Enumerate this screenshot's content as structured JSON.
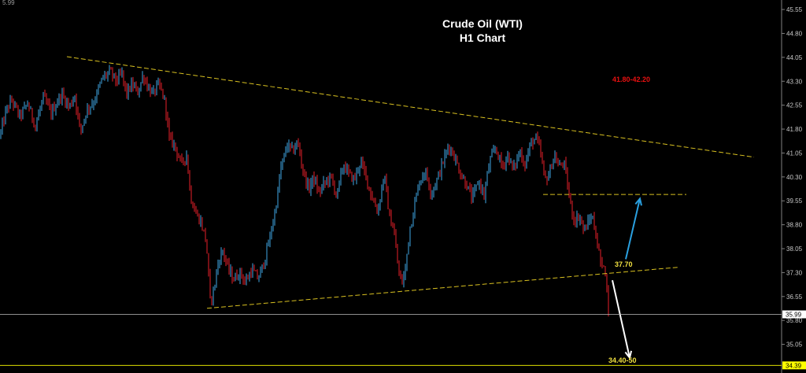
{
  "chart_data": {
    "type": "candlestick",
    "title": "Crude Oil (WTI)",
    "subtitle": "H1 Chart",
    "corner_label": "5.99",
    "y_ticks": [
      45.55,
      44.8,
      44.05,
      43.3,
      42.55,
      41.8,
      41.05,
      40.3,
      39.55,
      38.8,
      38.05,
      37.3,
      36.55,
      35.8,
      35.05
    ],
    "ylim": [
      34.25,
      45.7
    ],
    "current_price": "35.99",
    "lower_marker": "34.39",
    "annotations": {
      "resistance_target": "41.80-42.20",
      "breakout_level": "37.70",
      "downside_target": "34.40-50"
    },
    "colors": {
      "up": "#3fa9e6",
      "down": "#e8202a",
      "trendline": "#d8c020",
      "price_line": "#bfbfbf",
      "up_arrow": "#2aa0e0",
      "down_arrow": "#ffffff",
      "target_text": "#e81010",
      "level_text": "#f0e040",
      "lower_marker_bg": "#ffff00"
    },
    "price_path": [
      [
        0,
        41.6
      ],
      [
        8,
        42.4
      ],
      [
        15,
        42.7
      ],
      [
        25,
        42.2
      ],
      [
        35,
        42.6
      ],
      [
        45,
        41.9
      ],
      [
        55,
        42.8
      ],
      [
        65,
        42.3
      ],
      [
        78,
        42.9
      ],
      [
        88,
        42.5
      ],
      [
        95,
        42.85
      ],
      [
        102,
        41.7
      ],
      [
        110,
        42.4
      ],
      [
        120,
        42.7
      ],
      [
        130,
        43.4
      ],
      [
        140,
        43.6
      ],
      [
        148,
        43.3
      ],
      [
        155,
        43.55
      ],
      [
        160,
        42.9
      ],
      [
        168,
        43.2
      ],
      [
        175,
        42.95
      ],
      [
        182,
        43.5
      ],
      [
        188,
        43.1
      ],
      [
        195,
        42.9
      ],
      [
        200,
        43.2
      ],
      [
        205,
        43.0
      ],
      [
        210,
        42.6
      ],
      [
        215,
        41.5
      ],
      [
        222,
        41.3
      ],
      [
        230,
        40.7
      ],
      [
        237,
        41.0
      ],
      [
        242,
        39.7
      ],
      [
        248,
        39.2
      ],
      [
        255,
        38.9
      ],
      [
        262,
        38.3
      ],
      [
        267,
        36.4
      ],
      [
        272,
        36.8
      ],
      [
        277,
        37.6
      ],
      [
        283,
        38.0
      ],
      [
        290,
        37.4
      ],
      [
        297,
        37.1
      ],
      [
        305,
        37.3
      ],
      [
        312,
        37.0
      ],
      [
        320,
        37.4
      ],
      [
        328,
        37.1
      ],
      [
        335,
        37.6
      ],
      [
        342,
        38.3
      ],
      [
        350,
        39.3
      ],
      [
        357,
        40.6
      ],
      [
        365,
        41.3
      ],
      [
        372,
        41.1
      ],
      [
        378,
        41.4
      ],
      [
        385,
        40.5
      ],
      [
        392,
        39.9
      ],
      [
        398,
        40.3
      ],
      [
        405,
        39.8
      ],
      [
        412,
        40.1
      ],
      [
        420,
        40.3
      ],
      [
        428,
        39.7
      ],
      [
        436,
        40.7
      ],
      [
        443,
        40.4
      ],
      [
        450,
        40.2
      ],
      [
        458,
        40.8
      ],
      [
        465,
        40.3
      ],
      [
        472,
        39.7
      ],
      [
        480,
        39.2
      ],
      [
        488,
        40.4
      ],
      [
        495,
        39.0
      ],
      [
        500,
        38.7
      ],
      [
        505,
        37.6
      ],
      [
        510,
        36.9
      ],
      [
        515,
        37.4
      ],
      [
        520,
        38.6
      ],
      [
        525,
        39.2
      ],
      [
        532,
        40.1
      ],
      [
        540,
        40.5
      ],
      [
        548,
        39.8
      ],
      [
        555,
        40.2
      ],
      [
        562,
        40.7
      ],
      [
        570,
        41.3
      ],
      [
        578,
        40.9
      ],
      [
        585,
        40.4
      ],
      [
        592,
        40.1
      ],
      [
        600,
        39.6
      ],
      [
        608,
        40.2
      ],
      [
        615,
        39.7
      ],
      [
        622,
        40.8
      ],
      [
        630,
        41.2
      ],
      [
        638,
        40.6
      ],
      [
        645,
        41.0
      ],
      [
        652,
        40.5
      ],
      [
        660,
        41.1
      ],
      [
        667,
        40.7
      ],
      [
        675,
        41.4
      ],
      [
        682,
        41.5
      ],
      [
        687,
        41.0
      ],
      [
        692,
        40.2
      ],
      [
        698,
        40.4
      ],
      [
        704,
        41.0
      ],
      [
        710,
        40.6
      ],
      [
        716,
        40.8
      ],
      [
        720,
        40.2
      ],
      [
        725,
        39.4
      ],
      [
        730,
        38.9
      ],
      [
        736,
        39.1
      ],
      [
        742,
        38.6
      ],
      [
        748,
        38.9
      ],
      [
        752,
        39.1
      ],
      [
        757,
        38.5
      ],
      [
        761,
        37.9
      ],
      [
        765,
        37.4
      ],
      [
        768,
        37.7
      ],
      [
        772,
        36.4
      ],
      [
        774,
        36.05
      ]
    ],
    "trendlines": [
      {
        "points": [
          [
            85,
            44.07
          ],
          [
            958,
            40.92
          ]
        ],
        "dash": "6,3"
      },
      {
        "points": [
          [
            263,
            36.18
          ],
          [
            863,
            37.47
          ]
        ],
        "dash": "6,3"
      },
      {
        "points": [
          [
            690,
            39.75
          ],
          [
            872,
            39.75
          ]
        ],
        "dash": "6,3"
      }
    ],
    "arrows": [
      {
        "from": [
          795,
          37.72
        ],
        "to": [
          813,
          39.62
        ],
        "color": "up"
      },
      {
        "from": [
          778,
          37.06
        ],
        "to": [
          800,
          34.63
        ],
        "color": "down"
      }
    ]
  }
}
